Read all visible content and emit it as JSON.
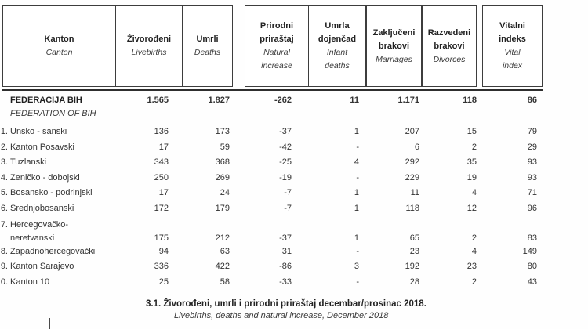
{
  "colors": {
    "ink": "#2a2a2a",
    "border": "#3d3d3d"
  },
  "table": {
    "columns": [
      {
        "bs": "Kanton",
        "en": "Canton"
      },
      {
        "bs": "Živorođeni",
        "en": "Livebirths"
      },
      {
        "bs": "Umrli",
        "en": "Deaths"
      },
      {
        "bs": "Prirodni\npriraštaj",
        "en": "Natural\nincrease"
      },
      {
        "bs": "Umrla\ndojenčad",
        "en": "Infant\ndeaths"
      },
      {
        "bs": "Zaključeni\nbrakovi",
        "en": "Marriages"
      },
      {
        "bs": "Razvedeni\nbrakovi",
        "en": "Divorces"
      },
      {
        "bs": "Vitalni\nindeks",
        "en": "Vital\nindex"
      }
    ],
    "total_row": {
      "name_bs": "FEDERACIJA BIH",
      "name_en": "FEDERATION OF BIH",
      "values": [
        "1.565",
        "1.827",
        "-262",
        "11",
        "1.171",
        "118",
        "86"
      ]
    },
    "rows": [
      {
        "num": "1.",
        "name": "Unsko - sanski",
        "values": [
          "136",
          "173",
          "-37",
          "1",
          "207",
          "15",
          "79"
        ]
      },
      {
        "num": "2.",
        "name": "Kanton Posavski",
        "values": [
          "17",
          "59",
          "-42",
          "-",
          "6",
          "2",
          "29"
        ]
      },
      {
        "num": "3.",
        "name": "Tuzlanski",
        "values": [
          "343",
          "368",
          "-25",
          "4",
          "292",
          "35",
          "93"
        ]
      },
      {
        "num": "4.",
        "name": "Zeničko - dobojski",
        "values": [
          "250",
          "269",
          "-19",
          "-",
          "229",
          "19",
          "93"
        ]
      },
      {
        "num": "5.",
        "name": "Bosansko - podrinjski",
        "values": [
          "17",
          "24",
          "-7",
          "1",
          "11",
          "4",
          "71"
        ]
      },
      {
        "num": "6.",
        "name": "Srednjobosanski",
        "values": [
          "172",
          "179",
          "-7",
          "1",
          "118",
          "12",
          "96"
        ]
      },
      {
        "num": "7.",
        "name": "Hercegovačko-",
        "name2": "neretvanski",
        "values": [
          "175",
          "212",
          "-37",
          "1",
          "65",
          "2",
          "83"
        ]
      },
      {
        "num": "8.",
        "name": "Zapadnohercegovački",
        "values": [
          "94",
          "63",
          "31",
          "-",
          "23",
          "4",
          "149"
        ]
      },
      {
        "num": "9.",
        "name": "Kanton Sarajevo",
        "values": [
          "336",
          "422",
          "-86",
          "3",
          "192",
          "23",
          "80"
        ]
      },
      {
        "num": "10.",
        "name": "Kanton 10",
        "values": [
          "25",
          "58",
          "-33",
          "-",
          "28",
          "2",
          "43"
        ]
      }
    ]
  },
  "caption": {
    "bs": "3.1. Živorođeni, umrli i prirodni priraštaj decembar/prosinac 2018.",
    "en": "Livebirths, deaths and natural increase, December 2018"
  }
}
